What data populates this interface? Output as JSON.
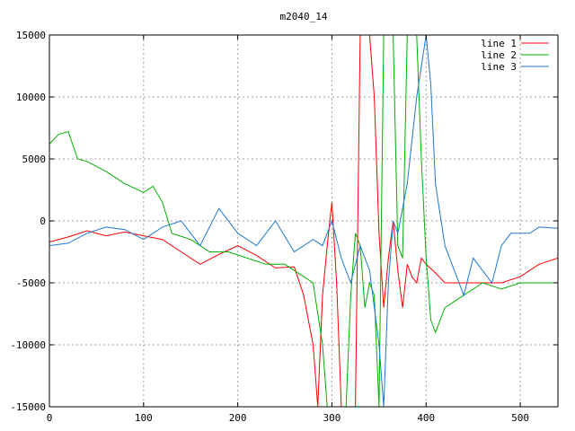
{
  "chart_data": {
    "type": "line",
    "title": "m2040_14",
    "xlabel": "",
    "ylabel": "",
    "xlim": [
      0,
      540
    ],
    "ylim": [
      -15000,
      15000
    ],
    "xticks": [
      "0",
      "100",
      "200",
      "300",
      "400",
      "500"
    ],
    "yticks": [
      "-15000",
      "-10000",
      "-5000",
      "0",
      "5000",
      "10000",
      "15000"
    ],
    "grid": true,
    "legend_position": "top-right",
    "series": [
      {
        "name": "line 1",
        "color": "#ff0000",
        "x": [
          0,
          20,
          40,
          60,
          80,
          100,
          120,
          140,
          160,
          180,
          200,
          220,
          240,
          260,
          270,
          280,
          285,
          290,
          295,
          300,
          305,
          310,
          315,
          320,
          325,
          330,
          335,
          340,
          345,
          350,
          355,
          360,
          365,
          370,
          375,
          380,
          385,
          390,
          395,
          400,
          410,
          420,
          440,
          460,
          480,
          500,
          520,
          540
        ],
        "y": [
          -1700,
          -1300,
          -800,
          -1200,
          -900,
          -1200,
          -1500,
          -2500,
          -3500,
          -2700,
          -2000,
          -2800,
          -3800,
          -3700,
          -6000,
          -10000,
          -15000,
          -6000,
          -2000,
          1500,
          -5000,
          -15000,
          -15000,
          -15000,
          -15000,
          15000,
          15000,
          15000,
          10000,
          -1000,
          -7000,
          -3000,
          0,
          -4000,
          -7000,
          -3500,
          -4500,
          -5000,
          -3000,
          -3500,
          -4200,
          -5000,
          -5000,
          -5000,
          -5000,
          -4500,
          -3500,
          -3000
        ]
      },
      {
        "name": "line 2",
        "color": "#00b000",
        "x": [
          0,
          10,
          20,
          30,
          40,
          60,
          80,
          100,
          110,
          120,
          130,
          150,
          170,
          190,
          210,
          230,
          250,
          270,
          280,
          290,
          295,
          300,
          305,
          310,
          315,
          320,
          325,
          330,
          335,
          340,
          345,
          350,
          355,
          360,
          365,
          370,
          375,
          380,
          385,
          390,
          395,
          400,
          405,
          410,
          420,
          440,
          460,
          480,
          500,
          520,
          540
        ],
        "y": [
          6200,
          7000,
          7200,
          5000,
          4800,
          4000,
          3000,
          2300,
          2800,
          1500,
          -1000,
          -1500,
          -2500,
          -2500,
          -3000,
          -3500,
          -3500,
          -4500,
          -5000,
          -10000,
          -15000,
          -15000,
          -15000,
          -15000,
          -15000,
          -6000,
          -1000,
          -2000,
          -7000,
          -5000,
          -6000,
          -15000,
          15000,
          15000,
          15000,
          -2000,
          -3000,
          15000,
          15000,
          15000,
          5000,
          -3000,
          -8000,
          -9000,
          -7000,
          -6000,
          -5000,
          -5500,
          -5000,
          -5000,
          -5000
        ]
      },
      {
        "name": "line 3",
        "color": "#1f78d0",
        "x": [
          0,
          20,
          40,
          60,
          80,
          100,
          120,
          140,
          160,
          180,
          200,
          220,
          240,
          260,
          280,
          290,
          300,
          310,
          320,
          330,
          340,
          350,
          355,
          360,
          365,
          370,
          380,
          390,
          400,
          405,
          410,
          420,
          430,
          440,
          450,
          460,
          470,
          480,
          490,
          500,
          510,
          520,
          540
        ],
        "y": [
          -2000,
          -1800,
          -1000,
          -500,
          -700,
          -1500,
          -500,
          0,
          -2000,
          1000,
          -1000,
          -2000,
          0,
          -2500,
          -1500,
          -2000,
          0,
          -3000,
          -5000,
          -2000,
          -4000,
          -10000,
          -15000,
          -5000,
          0,
          -1000,
          3000,
          10000,
          15000,
          11000,
          3000,
          -2000,
          -4000,
          -6000,
          -3000,
          -4000,
          -5000,
          -2000,
          -1000,
          -1000,
          -1000,
          -500,
          -600
        ]
      }
    ]
  }
}
